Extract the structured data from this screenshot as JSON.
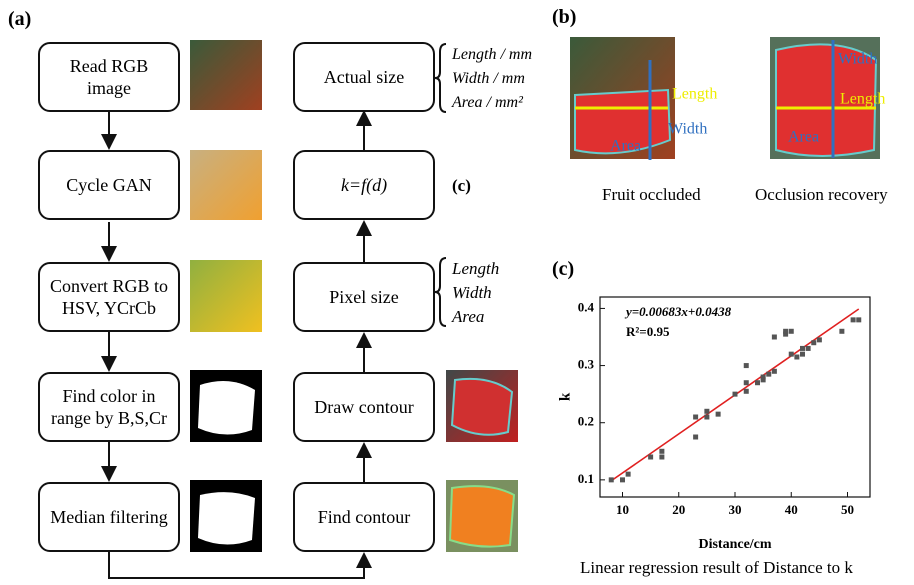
{
  "panel_a": {
    "label": "(a)",
    "left_steps": [
      "Read RGB image",
      "Cycle GAN",
      "Convert RGB to HSV, YCrCb",
      "Find color in range by B,S,Cr",
      "Median filtering"
    ],
    "right_steps": [
      "Find contour",
      "Draw contour",
      "Pixel size",
      "k=f(d)",
      "Actual size"
    ],
    "kfd_ref": "(c)",
    "pixel_size_outputs": [
      "Length",
      "Width",
      "Area"
    ],
    "actual_size_outputs": [
      "Length / mm",
      "Width / mm",
      "Area / mm²"
    ]
  },
  "panel_b": {
    "label": "(b)",
    "images": [
      {
        "caption": "Fruit occluded",
        "labels": [
          "Length",
          "Width",
          "Area"
        ]
      },
      {
        "caption": "Occlusion recovery",
        "labels": [
          "Width",
          "Length",
          "Area"
        ]
      }
    ]
  },
  "chart_data": {
    "type": "scatter",
    "label": "(c)",
    "equation": "y=0.00683x+0.0438",
    "r2": "R²=0.95",
    "x_label": "Distance/cm",
    "y_label": "k",
    "caption": "Linear regression result of Distance to k",
    "x": [
      8,
      10,
      11,
      15,
      17,
      17,
      23,
      23,
      25,
      25,
      27,
      30,
      32,
      32,
      32,
      34,
      35,
      35,
      36,
      37,
      37,
      39,
      39,
      40,
      40,
      41,
      42,
      42,
      43,
      44,
      45,
      49,
      51,
      52
    ],
    "values": [
      0.1,
      0.1,
      0.11,
      0.14,
      0.14,
      0.15,
      0.175,
      0.21,
      0.21,
      0.22,
      0.215,
      0.25,
      0.255,
      0.27,
      0.3,
      0.27,
      0.28,
      0.275,
      0.285,
      0.29,
      0.35,
      0.355,
      0.36,
      0.36,
      0.32,
      0.315,
      0.32,
      0.33,
      0.33,
      0.34,
      0.345,
      0.36,
      0.38,
      0.38
    ],
    "color": "#555555",
    "fit_line": {
      "x": [
        8,
        52
      ],
      "values": [
        0.0984,
        0.399
      ],
      "color": "#e02020"
    },
    "xlim": [
      6,
      54
    ],
    "ylim": [
      0.07,
      0.42
    ],
    "xticks": [
      10,
      20,
      30,
      40,
      50
    ],
    "yticks": [
      0.1,
      0.2,
      0.3,
      0.4
    ]
  }
}
